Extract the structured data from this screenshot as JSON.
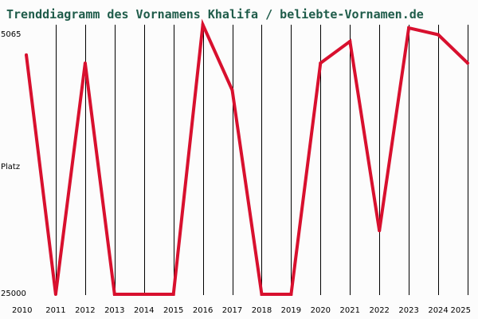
{
  "chart_data": {
    "type": "line",
    "title": "Trenddiagramm des Vornamens Khalifa / beliebte-Vornamen.de",
    "ylabel": "Platz",
    "xlabel": "",
    "x": [
      2010,
      2011,
      2012,
      2013,
      2014,
      2015,
      2016,
      2017,
      2018,
      2019,
      2020,
      2021,
      2022,
      2023,
      2024,
      2025
    ],
    "x_tick_labels": [
      "2010",
      "2011",
      "2012",
      "2013",
      "2014",
      "2015",
      "2016",
      "2017",
      "2018",
      "2019",
      "2020",
      "2021",
      "2022",
      "2023",
      "2024",
      "2025"
    ],
    "y_axis_top_label": "5065",
    "y_axis_bottom_label": "25000",
    "ylim": [
      25000,
      5065
    ],
    "y_inverted": true,
    "grid": "vertical",
    "series": [
      {
        "color": "#d8102e",
        "values": [
          7300,
          25000,
          7900,
          25000,
          25000,
          25000,
          5065,
          9900,
          25000,
          25000,
          7900,
          6300,
          20300,
          5300,
          5800,
          7900
        ]
      }
    ],
    "colors": {
      "background": "#fcfcfc",
      "title": "#1f5c4a",
      "grid": "#000000",
      "line": "#d8102e"
    }
  }
}
